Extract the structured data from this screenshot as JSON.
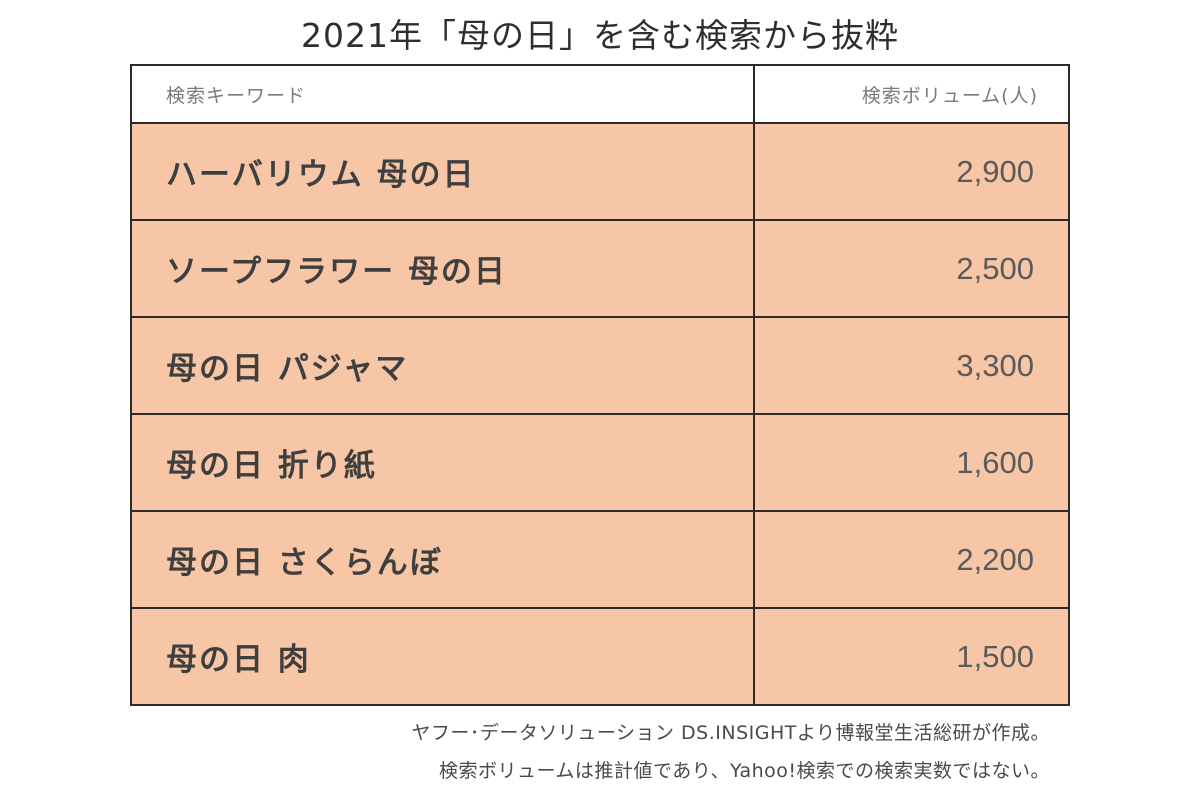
{
  "chart_data": {
    "type": "table",
    "title": "2021年「母の日」を含む検索から抜粋",
    "columns": [
      "検索キーワード",
      "検索ボリューム(人)"
    ],
    "rows": [
      {
        "keyword": "ハーバリウム 母の日",
        "volume": "2,900"
      },
      {
        "keyword": "ソープフラワー 母の日",
        "volume": "2,500"
      },
      {
        "keyword": "母の日 パジャマ",
        "volume": "3,300"
      },
      {
        "keyword": "母の日 折り紙",
        "volume": "1,600"
      },
      {
        "keyword": "母の日 さくらんぼ",
        "volume": "2,200"
      },
      {
        "keyword": "母の日 肉",
        "volume": "1,500"
      }
    ],
    "values": [
      2900,
      2500,
      3300,
      1600,
      2200,
      1500
    ]
  },
  "notes": [
    "ヤフー･データソリューション DS.INSIGHTより博報堂生活総研が作成。",
    "検索ボリュームは推計値であり、Yahoo!検索での検索実数ではない。"
  ],
  "colors": {
    "row_fill": "#f6c6a6",
    "border": "#2b2b2b",
    "header_fill": "#ffffff"
  }
}
